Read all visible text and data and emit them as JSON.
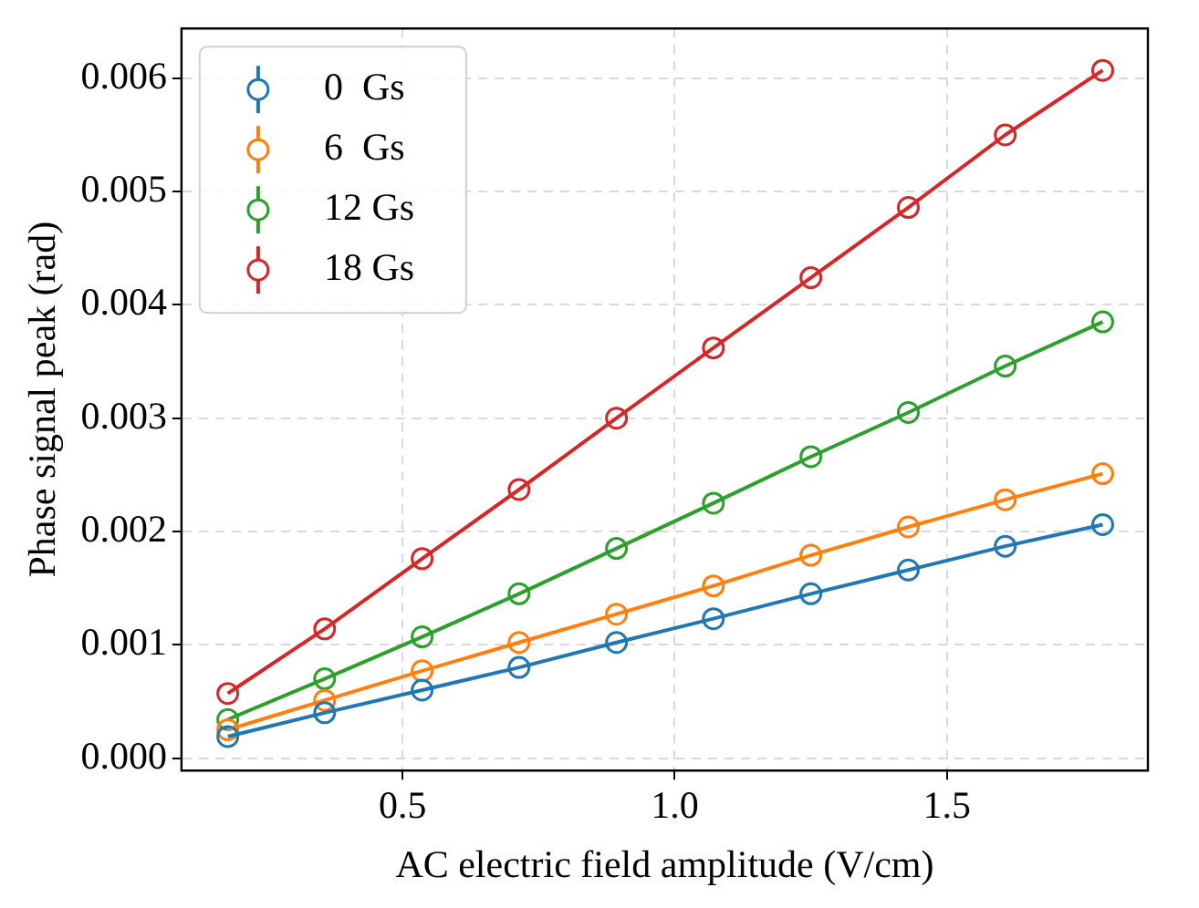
{
  "chart_data": {
    "type": "line",
    "xlabel": "AC electric field amplitude (V/cm)",
    "ylabel": "Phase signal peak (rad)",
    "x": [
      0.179,
      0.357,
      0.536,
      0.714,
      0.893,
      1.071,
      1.25,
      1.429,
      1.607,
      1.786
    ],
    "series": [
      {
        "name": "0  Gs",
        "color": "#1f77b4",
        "values": [
          0.00019,
          0.0004,
          0.0006,
          0.0008,
          0.00102,
          0.00123,
          0.00145,
          0.00166,
          0.00187,
          0.00206
        ]
      },
      {
        "name": "6  Gs",
        "color": "#ff7f0e",
        "values": [
          0.00025,
          0.00051,
          0.00077,
          0.00102,
          0.00127,
          0.00152,
          0.00179,
          0.00204,
          0.00228,
          0.00251
        ]
      },
      {
        "name": "12 Gs",
        "color": "#2ca02c",
        "values": [
          0.00034,
          0.0007,
          0.00107,
          0.00145,
          0.00185,
          0.00225,
          0.00266,
          0.00305,
          0.00346,
          0.00385
        ]
      },
      {
        "name": "18 Gs",
        "color": "#d62728",
        "values": [
          0.00057,
          0.00114,
          0.00176,
          0.00237,
          0.003,
          0.00362,
          0.00424,
          0.00486,
          0.0055,
          0.00607
        ]
      }
    ],
    "xlim": [
      0.094,
      1.869
    ],
    "xticks": [
      {
        "value": 0.5,
        "label": "0.5"
      },
      {
        "value": 1,
        "label": "1.0"
      },
      {
        "value": 1.5,
        "label": "1.5"
      }
    ],
    "ylim": [
      -0.00011,
      0.00644
    ],
    "yticks": [
      {
        "value": 0,
        "label": "0.000"
      },
      {
        "value": 0.001,
        "label": "0.001"
      },
      {
        "value": 0.002,
        "label": "0.002"
      },
      {
        "value": 0.003,
        "label": "0.003"
      },
      {
        "value": 0.004,
        "label": "0.004"
      },
      {
        "value": 0.005,
        "label": "0.005"
      },
      {
        "value": 0.006,
        "label": "0.006"
      }
    ],
    "grid": true,
    "legend": "top left",
    "marker": "circle",
    "line_style": "solid"
  }
}
